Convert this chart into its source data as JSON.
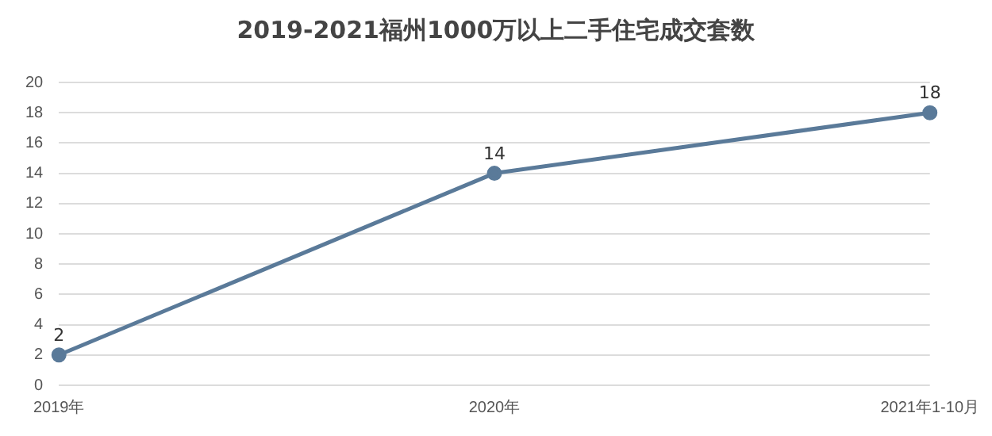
{
  "chart_data": {
    "type": "line",
    "title": "2019-2021福州1000万以上二手住宅成交套数",
    "categories": [
      "2019年",
      "2020年",
      "2021年1-10月"
    ],
    "series": [
      {
        "color": "#5a7a99",
        "values": [
          2,
          14,
          18
        ]
      }
    ],
    "ylim": [
      0,
      20
    ],
    "yticks": [
      0,
      2,
      4,
      6,
      8,
      10,
      12,
      14,
      16,
      18,
      20
    ],
    "grid": "y",
    "marker": "circle",
    "data_labels": true,
    "legend": false
  }
}
